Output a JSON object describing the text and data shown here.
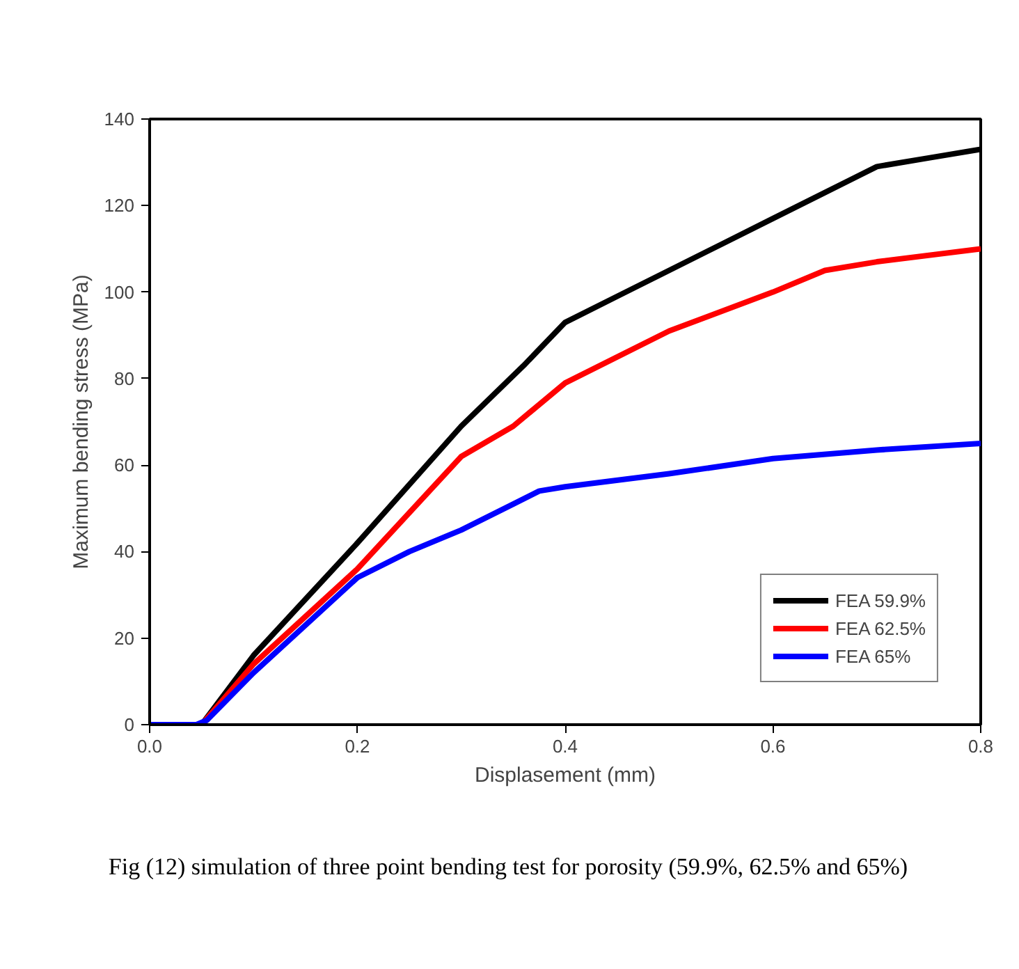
{
  "chart_data": {
    "type": "line",
    "xlabel": "Displasement (mm)",
    "ylabel": "Maximum bending stress (MPa)",
    "xlim": [
      0,
      0.8
    ],
    "ylim": [
      0,
      140
    ],
    "xticks": [
      {
        "value": 0,
        "label": "0.0"
      },
      0.2,
      0.4,
      0.6,
      0.8
    ],
    "yticks": [
      0,
      20,
      40,
      60,
      80,
      100,
      120,
      140
    ],
    "grid": false,
    "legend": "bottom right",
    "marker": "none",
    "line_style": "solid",
    "annotations": [
      "Fig (12) simulation of three point bending test for porosity (59.9%, 62.5% and 65%)"
    ],
    "series": [
      {
        "name": "FEA 59.9%",
        "color": "#000000",
        "x": [
          0.05,
          0.1,
          0.2,
          0.3,
          0.33,
          0.36,
          0.4,
          0.45,
          0.5,
          0.55,
          0.6,
          0.65,
          0.7,
          0.75,
          0.8
        ],
        "values": [
          0,
          16,
          42,
          69,
          76,
          83,
          93,
          99,
          105,
          111,
          117,
          123,
          129,
          131,
          133
        ]
      },
      {
        "name": "FEA 62.5%",
        "color": "#ff0000",
        "x": [
          0.05,
          0.1,
          0.2,
          0.3,
          0.35,
          0.4,
          0.5,
          0.6,
          0.65,
          0.7,
          0.8
        ],
        "values": [
          0,
          14,
          36,
          62,
          69,
          79,
          91,
          100,
          105,
          107,
          110
        ]
      },
      {
        "name": "FEA 65%",
        "color": "#0000ff",
        "x": [
          0,
          0.035,
          0.045,
          0.055,
          0.1,
          0.2,
          0.25,
          0.3,
          0.35,
          0.375,
          0.4,
          0.5,
          0.6,
          0.7,
          0.8
        ],
        "values": [
          0,
          0,
          0,
          1,
          12,
          34,
          40,
          45,
          51,
          54,
          55,
          58,
          61.5,
          63.5,
          65
        ]
      }
    ]
  }
}
